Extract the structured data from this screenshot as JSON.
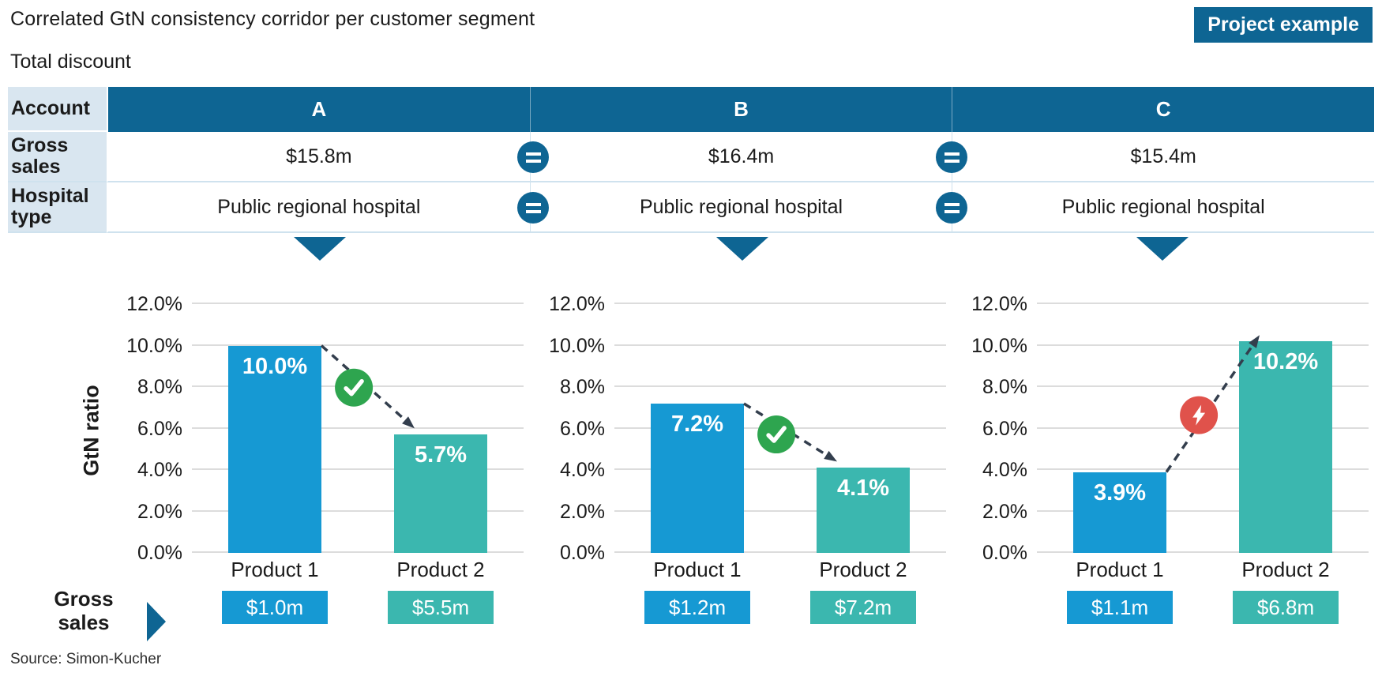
{
  "header": {
    "title": "Correlated GtN consistency corridor per customer segment",
    "badge": "Project example",
    "subtitle": "Total discount"
  },
  "table": {
    "row_labels": [
      "Account",
      "Gross sales",
      "Hospital type"
    ],
    "accounts": [
      "A",
      "B",
      "C"
    ],
    "gross_sales": [
      "$15.8m",
      "$16.4m",
      "$15.4m"
    ],
    "hospital_types": [
      "Public regional hospital",
      "Public regional hospital",
      "Public regional hospital"
    ]
  },
  "icons": {
    "equals": "equals-icon",
    "pointer": "down-triangle-icon",
    "consistent": "check-icon",
    "inconsistent": "lightning-bolt-icon",
    "gross_sales_arrow": "right-triangle-icon"
  },
  "colors": {
    "dark_blue": "#0E6593",
    "bar_blue": "#1699D3",
    "bar_teal": "#3BB7AF",
    "green_ok": "#2EA54F",
    "red_alert": "#E0524B",
    "label_col_bg": "#D9E6F0",
    "row_border": "#CFE2EE",
    "gridline": "#DCDCDC",
    "dash_line": "#333E4D"
  },
  "axis": {
    "title": "GtN ratio"
  },
  "footer": {
    "gross_sales_label": "Gross sales",
    "source": "Source: Simon-Kucher"
  },
  "chart_data": [
    {
      "type": "bar",
      "account": "A",
      "title": "Account A GtN ratio",
      "categories": [
        "Product 1",
        "Product 2"
      ],
      "values": [
        10.0,
        5.7
      ],
      "value_labels": [
        "10.0%",
        "5.7%"
      ],
      "gross_sales_chips": [
        "$1.0m",
        "$5.5m"
      ],
      "series_colors": [
        "#1699D3",
        "#3BB7AF"
      ],
      "status": "consistent",
      "xlabel": "",
      "ylabel": "GtN ratio",
      "ylim": [
        0,
        12
      ],
      "yticks": [
        0,
        2,
        4,
        6,
        8,
        10,
        12
      ],
      "ytick_labels": [
        "0.0%",
        "2.0%",
        "4.0%",
        "6.0%",
        "8.0%",
        "10.0%",
        "12.0%"
      ],
      "grid": true
    },
    {
      "type": "bar",
      "account": "B",
      "title": "Account B GtN ratio",
      "categories": [
        "Product 1",
        "Product 2"
      ],
      "values": [
        7.2,
        4.1
      ],
      "value_labels": [
        "7.2%",
        "4.1%"
      ],
      "gross_sales_chips": [
        "$1.2m",
        "$7.2m"
      ],
      "series_colors": [
        "#1699D3",
        "#3BB7AF"
      ],
      "status": "consistent",
      "xlabel": "",
      "ylabel": "GtN ratio",
      "ylim": [
        0,
        12
      ],
      "yticks": [
        0,
        2,
        4,
        6,
        8,
        10,
        12
      ],
      "ytick_labels": [
        "0.0%",
        "2.0%",
        "4.0%",
        "6.0%",
        "8.0%",
        "10.0%",
        "12.0%"
      ],
      "grid": true
    },
    {
      "type": "bar",
      "account": "C",
      "title": "Account C GtN ratio",
      "categories": [
        "Product 1",
        "Product 2"
      ],
      "values": [
        3.9,
        10.2
      ],
      "value_labels": [
        "3.9%",
        "10.2%"
      ],
      "gross_sales_chips": [
        "$1.1m",
        "$6.8m"
      ],
      "series_colors": [
        "#1699D3",
        "#3BB7AF"
      ],
      "status": "inconsistent",
      "xlabel": "",
      "ylabel": "GtN ratio",
      "ylim": [
        0,
        12
      ],
      "yticks": [
        0,
        2,
        4,
        6,
        8,
        10,
        12
      ],
      "ytick_labels": [
        "0.0%",
        "2.0%",
        "4.0%",
        "6.0%",
        "8.0%",
        "10.0%",
        "12.0%"
      ],
      "grid": true
    }
  ]
}
